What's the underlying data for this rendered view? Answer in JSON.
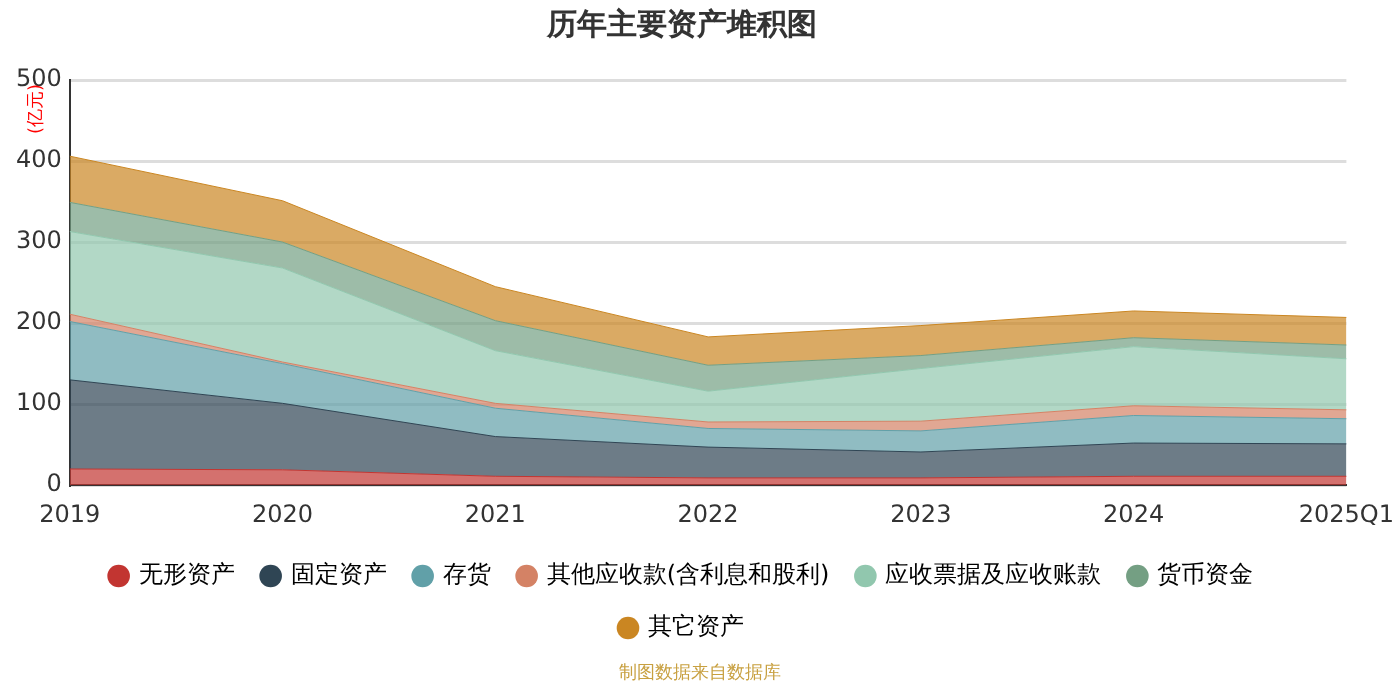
{
  "chart_data": {
    "type": "area",
    "title": "历年主要资产堆积图",
    "ylabel": "(亿元)",
    "categories": [
      "2019",
      "2020",
      "2021",
      "2022",
      "2023",
      "2024",
      "2025Q1"
    ],
    "stacked": true,
    "ylim": [
      0,
      500
    ],
    "yticks": [
      0,
      100,
      200,
      300,
      400,
      500
    ],
    "grid": "y",
    "legend": "bottom",
    "marker": "none",
    "annotations": [
      "制图数据来自数据库"
    ],
    "series": [
      {
        "name": "无形资产",
        "color": "#c23531",
        "values": [
          20,
          19,
          11,
          9,
          9,
          11,
          11
        ]
      },
      {
        "name": "固定资产",
        "color": "#2f4554",
        "values": [
          110,
          82,
          49,
          38,
          32,
          41,
          40
        ]
      },
      {
        "name": "存货",
        "color": "#61a0a8",
        "values": [
          72,
          49,
          35,
          23,
          26,
          34,
          31
        ]
      },
      {
        "name": "其他应收款(含利息和股利)",
        "color": "#d48265",
        "values": [
          9,
          2,
          6,
          8,
          12,
          12,
          11
        ]
      },
      {
        "name": "应收票据及应收账款",
        "color": "#91c7ae",
        "values": [
          102,
          116,
          65,
          38,
          65,
          73,
          63
        ]
      },
      {
        "name": "货币资金",
        "color": "#749f83",
        "values": [
          36,
          32,
          37,
          32,
          16,
          11,
          17
        ]
      },
      {
        "name": "其它资产",
        "color": "#ca8622",
        "values": [
          57,
          51,
          42,
          35,
          37,
          33,
          34
        ]
      }
    ]
  }
}
